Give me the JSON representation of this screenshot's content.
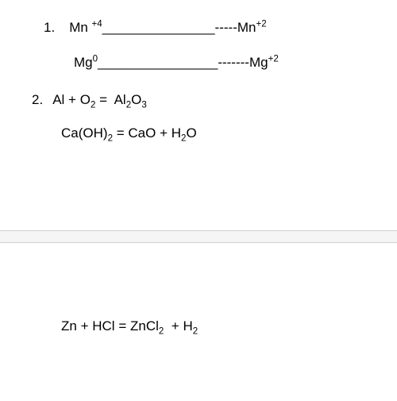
{
  "colors": {
    "background": "#ffffff",
    "text": "#000000",
    "separator_fill": "#f5f5f5",
    "separator_border": "#d0d0d0"
  },
  "typography": {
    "font_family": "Arial, sans-serif",
    "body_fontsize": 17,
    "sup_sub_scale": 0.68
  },
  "question1": {
    "number": "1.",
    "line1": {
      "species_left": "Mn",
      "charge_left": "+4",
      "blank": "_______________",
      "dashes": "-----",
      "species_right": "Mn",
      "charge_right": "+2"
    },
    "line2": {
      "species_left": "Mg",
      "charge_left": "0",
      "blank": "________________",
      "dashes": "-------",
      "species_right": "Mg",
      "charge_right": "+2"
    }
  },
  "question2": {
    "number": "2.",
    "equation1": {
      "reactant1": "Al",
      "plus": "+",
      "reactant2": "O",
      "reactant2_sub": "2",
      "equals": "=",
      "product": "Al",
      "product_sub1": "2",
      "product_mid": "O",
      "product_sub2": "3"
    },
    "equation2": {
      "reactant": "Ca(OH)",
      "reactant_sub": "2",
      "equals": "=",
      "product1": "CaO",
      "plus": "+",
      "product2": "H",
      "product2_sub": "2",
      "product2_tail": "O"
    }
  },
  "question3": {
    "equation": {
      "reactant1": "Zn",
      "plus1": "+",
      "reactant2": "HCl",
      "equals": "=",
      "product1": "ZnCl",
      "product1_sub": "2",
      "plus2": "+",
      "product2": "H",
      "product2_sub": "2"
    }
  }
}
